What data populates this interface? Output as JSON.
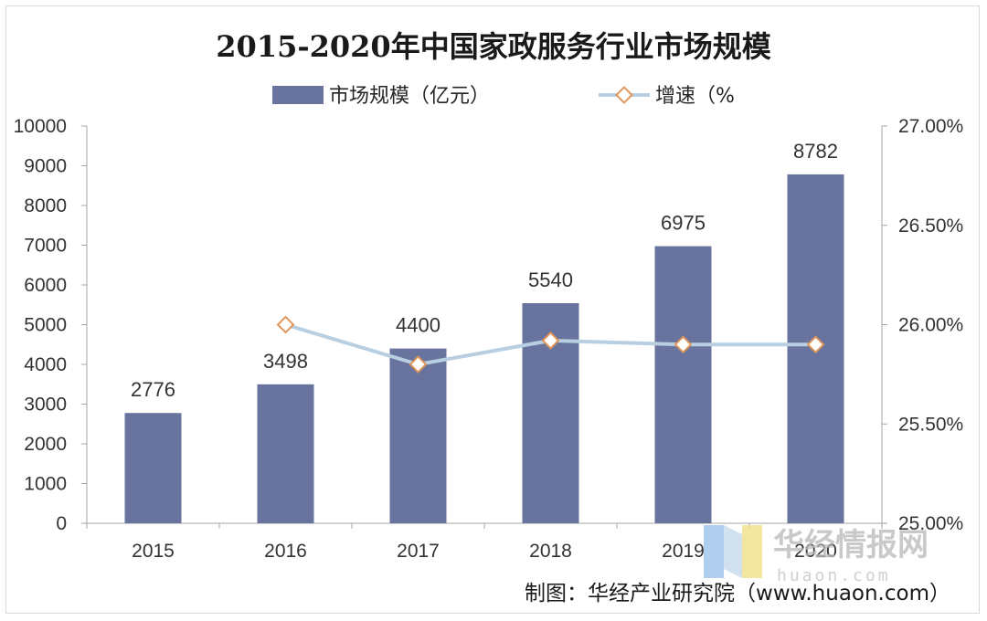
{
  "chart_data": {
    "type": "bar+line",
    "title": "2015-2020年中国家政服务行业市场规模",
    "categories": [
      "2015",
      "2016",
      "2017",
      "2018",
      "2019",
      "2020"
    ],
    "series": [
      {
        "name": "市场规模（亿元）",
        "type": "bar",
        "axis": "left",
        "color": "#68739e",
        "values": [
          2776,
          3498,
          4400,
          5540,
          6975,
          8782
        ],
        "labels": [
          "2776",
          "3498",
          "4400",
          "5540",
          "6975",
          "8782"
        ]
      },
      {
        "name": "增速（%",
        "type": "line",
        "axis": "right",
        "color": "#b8cfe2",
        "marker_color": "#e0965a",
        "values": [
          null,
          26.0,
          25.8,
          25.92,
          25.9,
          25.9
        ]
      }
    ],
    "left_axis": {
      "min": 0,
      "max": 10000,
      "step": 1000,
      "ticks": [
        "0",
        "1000",
        "2000",
        "3000",
        "4000",
        "5000",
        "6000",
        "7000",
        "8000",
        "9000",
        "10000"
      ]
    },
    "right_axis": {
      "min": 25.0,
      "max": 27.0,
      "step": 0.5,
      "ticks": [
        "25.00%",
        "25.50%",
        "26.00%",
        "26.50%",
        "27.00%"
      ]
    },
    "legend_position": "top-center",
    "grid": false
  },
  "watermark": {
    "text": "华经情报网",
    "sub": "huaon.com"
  },
  "credit": "制图：华经产业研究院（www.huaon.com）"
}
